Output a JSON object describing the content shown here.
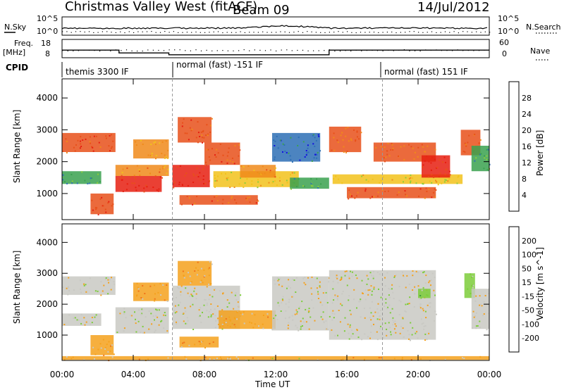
{
  "header": {
    "title": "Christmas Valley West (fitACF)",
    "beam": "Beam 09",
    "date": "14/Jul/2012"
  },
  "top_panels": {
    "nsky_label": "N.Sky",
    "nsky_ticks": [
      "10^5",
      "10^0"
    ],
    "nsearch_label": "N.Search",
    "nsearch_ticks": [
      "10^5",
      "10^0"
    ],
    "freq_label_1": "Freq.",
    "freq_label_2": "[MHz]",
    "freq_ticks": [
      "18",
      "8"
    ],
    "nave_label": "Nave",
    "nave_ticks": [
      "60",
      "0"
    ],
    "cpid_label": "CPID",
    "cpid_segments": [
      "themis 3300 IF",
      "normal (fast) -151 IF",
      "normal (fast) 151 IF"
    ]
  },
  "chart_data": [
    {
      "type": "heatmap",
      "name": "power",
      "xlabel": "Time UT",
      "ylabel": "Slant Range [km]",
      "xlim": [
        0,
        24
      ],
      "ylim": [
        180,
        4600
      ],
      "x_ticks": [
        "00:00",
        "04:00",
        "08:00",
        "12:00",
        "16:00",
        "20:00",
        "00:00"
      ],
      "y_ticks": [
        "1000",
        "2000",
        "3000",
        "4000"
      ],
      "colorbar_label": "Power [dB]",
      "colorbar_ticks": [
        "4",
        "8",
        "12",
        "16",
        "20",
        "24",
        "28"
      ],
      "colorbar_colors": [
        "#1010e0",
        "#2d6fb5",
        "#3aa14f",
        "#8dcc3a",
        "#f2c21b",
        "#f08a1a",
        "#e8501a",
        "#e61e10"
      ],
      "regions": [
        {
          "x0": 0.0,
          "x1": 3.0,
          "y0": 2300,
          "y1": 2900,
          "val": 26
        },
        {
          "x0": 0.0,
          "x1": 2.2,
          "y0": 1300,
          "y1": 1700,
          "val": 10
        },
        {
          "x0": 1.6,
          "x1": 2.9,
          "y0": 350,
          "y1": 1000,
          "val": 27
        },
        {
          "x0": 3.0,
          "x1": 5.6,
          "y0": 1050,
          "y1": 1550,
          "val": 28
        },
        {
          "x0": 3.0,
          "x1": 6.0,
          "y0": 1550,
          "y1": 1900,
          "val": 22
        },
        {
          "x0": 4.0,
          "x1": 6.0,
          "y0": 2100,
          "y1": 2700,
          "val": 20
        },
        {
          "x0": 6.2,
          "x1": 8.3,
          "y0": 1200,
          "y1": 1900,
          "val": 28
        },
        {
          "x0": 6.5,
          "x1": 8.4,
          "y0": 2600,
          "y1": 3400,
          "val": 27
        },
        {
          "x0": 8.0,
          "x1": 10.0,
          "y0": 1900,
          "y1": 2600,
          "val": 26
        },
        {
          "x0": 6.6,
          "x1": 11.0,
          "y0": 650,
          "y1": 950,
          "val": 25
        },
        {
          "x0": 8.5,
          "x1": 13.3,
          "y0": 1200,
          "y1": 1700,
          "val": 18
        },
        {
          "x0": 10.0,
          "x1": 12.0,
          "y0": 1500,
          "y1": 1900,
          "val": 22
        },
        {
          "x0": 11.8,
          "x1": 14.5,
          "y0": 2000,
          "y1": 2900,
          "val": 6
        },
        {
          "x0": 12.8,
          "x1": 15.0,
          "y0": 1150,
          "y1": 1500,
          "val": 10
        },
        {
          "x0": 15.0,
          "x1": 16.8,
          "y0": 2300,
          "y1": 3100,
          "val": 24
        },
        {
          "x0": 15.2,
          "x1": 22.5,
          "y0": 1300,
          "y1": 1600,
          "val": 17
        },
        {
          "x0": 16.0,
          "x1": 21.0,
          "y0": 850,
          "y1": 1200,
          "val": 25
        },
        {
          "x0": 17.5,
          "x1": 21.0,
          "y0": 2000,
          "y1": 2600,
          "val": 24
        },
        {
          "x0": 20.2,
          "x1": 21.8,
          "y0": 1500,
          "y1": 2200,
          "val": 28
        },
        {
          "x0": 22.4,
          "x1": 23.5,
          "y0": 2200,
          "y1": 3000,
          "val": 24
        },
        {
          "x0": 23.0,
          "x1": 24.0,
          "y0": 1700,
          "y1": 2500,
          "val": 10
        }
      ]
    },
    {
      "type": "heatmap",
      "name": "velocity",
      "xlabel": "Time UT",
      "ylabel": "Slant Range [km]",
      "xlim": [
        0,
        24
      ],
      "ylim": [
        180,
        4600
      ],
      "x_ticks": [
        "00:00",
        "04:00",
        "08:00",
        "12:00",
        "16:00",
        "20:00",
        "00:00"
      ],
      "y_ticks": [
        "1000",
        "2000",
        "3000",
        "4000"
      ],
      "colorbar_label": "Velocity [m s^-1]",
      "colorbar_ticks": [
        "200",
        "100",
        "50",
        "15",
        "-15",
        "-50",
        "-100",
        "-200"
      ],
      "colorbar_colors": [
        "#1e2fcf",
        "#2d7f74",
        "#3c9a3c",
        "#7ccd3a",
        "#c9c9c3",
        "#f5a11c",
        "#f0741a",
        "#e84a17",
        "#e01313"
      ],
      "regions": [
        {
          "x0": 0.0,
          "x1": 3.0,
          "y0": 2300,
          "y1": 2900,
          "val": 0
        },
        {
          "x0": 0.0,
          "x1": 2.2,
          "y0": 1300,
          "y1": 1700,
          "val": 0
        },
        {
          "x0": 1.6,
          "x1": 2.9,
          "y0": 350,
          "y1": 1000,
          "val": -40
        },
        {
          "x0": 3.0,
          "x1": 6.0,
          "y0": 1050,
          "y1": 1900,
          "val": 0
        },
        {
          "x0": 4.0,
          "x1": 6.0,
          "y0": 2100,
          "y1": 2700,
          "val": -60
        },
        {
          "x0": 6.2,
          "x1": 10.0,
          "y0": 1200,
          "y1": 2600,
          "val": 0
        },
        {
          "x0": 6.5,
          "x1": 8.4,
          "y0": 2600,
          "y1": 3400,
          "val": -40
        },
        {
          "x0": 6.6,
          "x1": 8.8,
          "y0": 600,
          "y1": 950,
          "val": -70
        },
        {
          "x0": 8.8,
          "x1": 12.0,
          "y0": 1200,
          "y1": 1800,
          "val": -40
        },
        {
          "x0": 11.8,
          "x1": 15.0,
          "y0": 1150,
          "y1": 2900,
          "val": 0
        },
        {
          "x0": 15.0,
          "x1": 21.0,
          "y0": 850,
          "y1": 3100,
          "val": 0
        },
        {
          "x0": 20.0,
          "x1": 20.7,
          "y0": 2200,
          "y1": 2500,
          "val": 30
        },
        {
          "x0": 22.6,
          "x1": 23.2,
          "y0": 2200,
          "y1": 3000,
          "val": 30
        },
        {
          "x0": 23.0,
          "x1": 24.0,
          "y0": 1200,
          "y1": 2500,
          "val": 0
        },
        {
          "x0": 0.0,
          "x1": 24.0,
          "y0": 200,
          "y1": 320,
          "val": -30
        }
      ]
    }
  ]
}
